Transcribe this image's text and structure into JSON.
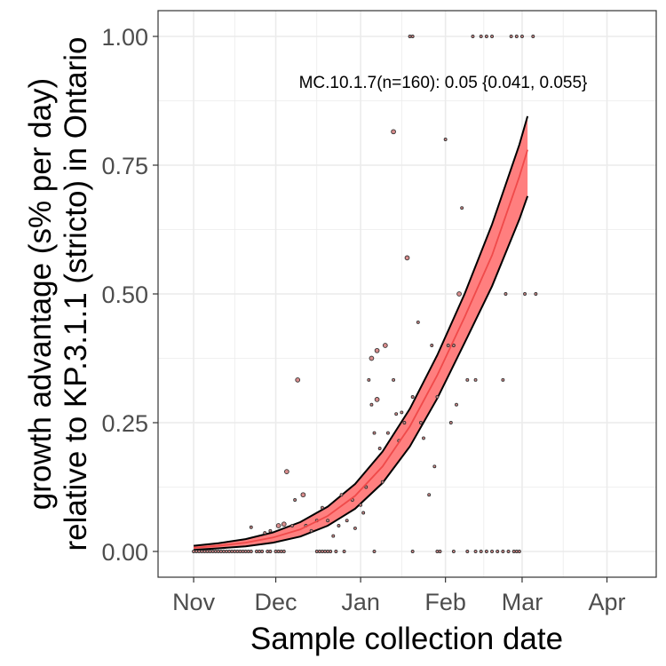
{
  "chart_data": {
    "type": "scatter",
    "title": "",
    "xlabel": "Sample collection date",
    "ylabel_line1": "growth advantage (s% per day)",
    "ylabel_line2": "relative to KP.3.1.1 (stricto) in Ontario",
    "annotation": "MC.10.1.7(n=160): 0.05 {0.041, 0.055}",
    "x_unit": "date",
    "xlim": [
      "2024-10-19",
      "2025-04-19"
    ],
    "ylim": [
      -0.05,
      1.05
    ],
    "x_ticks": [
      {
        "label": "Nov",
        "date": "2024-11-01"
      },
      {
        "label": "Dec",
        "date": "2024-12-01"
      },
      {
        "label": "Jan",
        "date": "2025-01-01"
      },
      {
        "label": "Feb",
        "date": "2025-02-01"
      },
      {
        "label": "Mar",
        "date": "2025-03-01"
      },
      {
        "label": "Apr",
        "date": "2025-04-01"
      }
    ],
    "y_ticks": [
      {
        "label": "0.00",
        "value": 0
      },
      {
        "label": "0.25",
        "value": 0.25
      },
      {
        "label": "0.50",
        "value": 0.5
      },
      {
        "label": "0.75",
        "value": 0.75
      },
      {
        "label": "1.00",
        "value": 1
      }
    ],
    "grid": true,
    "colors": {
      "ribbon": "#ff7f7f",
      "fit_line": "#f04a4a",
      "ribbon_border": "#000000",
      "point_fill": "#d98c8c",
      "point_stroke": "#333333",
      "grid": "#ebebeb",
      "panel_border": "#333333"
    },
    "fit": {
      "x": [
        "2024-11-01",
        "2024-11-10",
        "2024-11-20",
        "2024-11-30",
        "2024-12-10",
        "2024-12-20",
        "2024-12-30",
        "2025-01-09",
        "2025-01-19",
        "2025-01-29",
        "2025-02-08",
        "2025-02-18",
        "2025-02-28",
        "2025-03-03"
      ],
      "mid": [
        0.007,
        0.011,
        0.017,
        0.027,
        0.043,
        0.069,
        0.108,
        0.165,
        0.243,
        0.342,
        0.455,
        0.575,
        0.728,
        0.78
      ],
      "lower": [
        0.003,
        0.006,
        0.01,
        0.017,
        0.029,
        0.05,
        0.083,
        0.133,
        0.204,
        0.297,
        0.405,
        0.515,
        0.645,
        0.69
      ],
      "upper": [
        0.011,
        0.016,
        0.024,
        0.037,
        0.057,
        0.087,
        0.131,
        0.194,
        0.277,
        0.381,
        0.5,
        0.635,
        0.79,
        0.845
      ]
    },
    "points": [
      {
        "x": "2024-11-01",
        "y": 0,
        "size": 1
      },
      {
        "x": "2024-11-02",
        "y": 0,
        "size": 1
      },
      {
        "x": "2024-11-03",
        "y": 0,
        "size": 1
      },
      {
        "x": "2024-11-04",
        "y": 0,
        "size": 1
      },
      {
        "x": "2024-11-05",
        "y": 0,
        "size": 1
      },
      {
        "x": "2024-11-06",
        "y": 0,
        "size": 1
      },
      {
        "x": "2024-11-07",
        "y": 0,
        "size": 1
      },
      {
        "x": "2024-11-08",
        "y": 0,
        "size": 1
      },
      {
        "x": "2024-11-09",
        "y": 0,
        "size": 1
      },
      {
        "x": "2024-11-10",
        "y": 0,
        "size": 1
      },
      {
        "x": "2024-11-11",
        "y": 0,
        "size": 1
      },
      {
        "x": "2024-11-12",
        "y": 0,
        "size": 1
      },
      {
        "x": "2024-11-13",
        "y": 0,
        "size": 1
      },
      {
        "x": "2024-11-14",
        "y": 0,
        "size": 1
      },
      {
        "x": "2024-11-15",
        "y": 0,
        "size": 1
      },
      {
        "x": "2024-11-16",
        "y": 0,
        "size": 1
      },
      {
        "x": "2024-11-17",
        "y": 0,
        "size": 1
      },
      {
        "x": "2024-11-18",
        "y": 0,
        "size": 1
      },
      {
        "x": "2024-11-19",
        "y": 0,
        "size": 1
      },
      {
        "x": "2024-11-20",
        "y": 0,
        "size": 1
      },
      {
        "x": "2024-11-21",
        "y": 0,
        "size": 1
      },
      {
        "x": "2024-11-22",
        "y": 0,
        "size": 1
      },
      {
        "x": "2024-11-24",
        "y": 0,
        "size": 1
      },
      {
        "x": "2024-11-25",
        "y": 0,
        "size": 1
      },
      {
        "x": "2024-11-26",
        "y": 0,
        "size": 1
      },
      {
        "x": "2024-11-28",
        "y": 0,
        "size": 1
      },
      {
        "x": "2024-11-29",
        "y": 0,
        "size": 1
      },
      {
        "x": "2024-12-01",
        "y": 0,
        "size": 1
      },
      {
        "x": "2024-12-02",
        "y": 0,
        "size": 1
      },
      {
        "x": "2024-12-03",
        "y": 0,
        "size": 1
      },
      {
        "x": "2024-12-04",
        "y": 0,
        "size": 1
      },
      {
        "x": "2024-12-16",
        "y": 0,
        "size": 1
      },
      {
        "x": "2024-12-17",
        "y": 0,
        "size": 1
      },
      {
        "x": "2024-12-18",
        "y": 0,
        "size": 1
      },
      {
        "x": "2024-12-19",
        "y": 0,
        "size": 1
      },
      {
        "x": "2024-12-20",
        "y": 0,
        "size": 1
      },
      {
        "x": "2024-12-21",
        "y": 0,
        "size": 1
      },
      {
        "x": "2024-12-23",
        "y": 0,
        "size": 1
      },
      {
        "x": "2024-12-26",
        "y": 0,
        "size": 1
      },
      {
        "x": "2025-01-06",
        "y": 0,
        "size": 1
      },
      {
        "x": "2025-01-20",
        "y": 0,
        "size": 1
      },
      {
        "x": "2025-01-29",
        "y": 0,
        "size": 1
      },
      {
        "x": "2025-01-30",
        "y": 0,
        "size": 1
      },
      {
        "x": "2025-02-04",
        "y": 0,
        "size": 1
      },
      {
        "x": "2025-02-09",
        "y": 0,
        "size": 1
      },
      {
        "x": "2025-02-12",
        "y": 0,
        "size": 1
      },
      {
        "x": "2025-02-14",
        "y": 0,
        "size": 1
      },
      {
        "x": "2025-02-16",
        "y": 0,
        "size": 1
      },
      {
        "x": "2025-02-18",
        "y": 0,
        "size": 1
      },
      {
        "x": "2025-02-20",
        "y": 0,
        "size": 1
      },
      {
        "x": "2025-02-22",
        "y": 0,
        "size": 1
      },
      {
        "x": "2025-02-24",
        "y": 0,
        "size": 1
      },
      {
        "x": "2025-02-26",
        "y": 0,
        "size": 1
      },
      {
        "x": "2025-02-27",
        "y": 0,
        "size": 1
      },
      {
        "x": "2025-02-28",
        "y": 0,
        "size": 1
      },
      {
        "x": "2024-11-22",
        "y": 0.047,
        "size": 1
      },
      {
        "x": "2024-11-27",
        "y": 0.036,
        "size": 1
      },
      {
        "x": "2024-11-29",
        "y": 0.04,
        "size": 1
      },
      {
        "x": "2024-12-02",
        "y": 0.05,
        "size": 2
      },
      {
        "x": "2024-12-04",
        "y": 0.053,
        "size": 2
      },
      {
        "x": "2024-12-05",
        "y": 0.155,
        "size": 2
      },
      {
        "x": "2024-12-07",
        "y": 0.05,
        "size": 1
      },
      {
        "x": "2024-12-08",
        "y": 0.1,
        "size": 1
      },
      {
        "x": "2024-12-09",
        "y": 0.333,
        "size": 2
      },
      {
        "x": "2024-12-11",
        "y": 0.11,
        "size": 2
      },
      {
        "x": "2024-12-12",
        "y": 0.05,
        "size": 1
      },
      {
        "x": "2024-12-14",
        "y": 0.04,
        "size": 1
      },
      {
        "x": "2024-12-16",
        "y": 0.06,
        "size": 1
      },
      {
        "x": "2024-12-18",
        "y": 0.085,
        "size": 1
      },
      {
        "x": "2024-12-20",
        "y": 0.06,
        "size": 1
      },
      {
        "x": "2024-12-22",
        "y": 0.03,
        "size": 1
      },
      {
        "x": "2024-12-24",
        "y": 0.05,
        "size": 1
      },
      {
        "x": "2024-12-25",
        "y": 0.11,
        "size": 1
      },
      {
        "x": "2024-12-27",
        "y": 0.06,
        "size": 1
      },
      {
        "x": "2024-12-29",
        "y": 0.1,
        "size": 1
      },
      {
        "x": "2024-12-30",
        "y": 0.045,
        "size": 1
      },
      {
        "x": "2025-01-01",
        "y": 0.09,
        "size": 1
      },
      {
        "x": "2025-01-02",
        "y": 0.075,
        "size": 1
      },
      {
        "x": "2025-01-03",
        "y": 0.125,
        "size": 1
      },
      {
        "x": "2025-01-04",
        "y": 0.333,
        "size": 1
      },
      {
        "x": "2025-01-05",
        "y": 0.375,
        "size": 2
      },
      {
        "x": "2025-01-05",
        "y": 0.285,
        "size": 1
      },
      {
        "x": "2025-01-06",
        "y": 0.23,
        "size": 1
      },
      {
        "x": "2025-01-07",
        "y": 0.39,
        "size": 2
      },
      {
        "x": "2025-01-07",
        "y": 0.295,
        "size": 2
      },
      {
        "x": "2025-01-08",
        "y": 0.2,
        "size": 1
      },
      {
        "x": "2025-01-09",
        "y": 0.135,
        "size": 1
      },
      {
        "x": "2025-01-10",
        "y": 0.4,
        "size": 2
      },
      {
        "x": "2025-01-11",
        "y": 0.23,
        "size": 1
      },
      {
        "x": "2025-01-13",
        "y": 0.333,
        "size": 1
      },
      {
        "x": "2025-01-13",
        "y": 0.815,
        "size": 2
      },
      {
        "x": "2025-01-14",
        "y": 0.267,
        "size": 1
      },
      {
        "x": "2025-01-15",
        "y": 0.215,
        "size": 1
      },
      {
        "x": "2025-01-16",
        "y": 0.27,
        "size": 1
      },
      {
        "x": "2025-01-17",
        "y": 0.25,
        "size": 1
      },
      {
        "x": "2025-01-18",
        "y": 0.57,
        "size": 2
      },
      {
        "x": "2025-01-19",
        "y": 1.0,
        "size": 1
      },
      {
        "x": "2025-01-20",
        "y": 1.0,
        "size": 1
      },
      {
        "x": "2025-01-20",
        "y": 0.3,
        "size": 1
      },
      {
        "x": "2025-01-22",
        "y": 0.445,
        "size": 1
      },
      {
        "x": "2025-01-23",
        "y": 0.25,
        "size": 1
      },
      {
        "x": "2025-01-24",
        "y": 0.22,
        "size": 1
      },
      {
        "x": "2025-01-26",
        "y": 0.11,
        "size": 1
      },
      {
        "x": "2025-01-27",
        "y": 0.4,
        "size": 1
      },
      {
        "x": "2025-01-28",
        "y": 0.165,
        "size": 1
      },
      {
        "x": "2025-01-29",
        "y": 0.3,
        "size": 1
      },
      {
        "x": "2025-02-01",
        "y": 0.8,
        "size": 1
      },
      {
        "x": "2025-02-02",
        "y": 0.4,
        "size": 1
      },
      {
        "x": "2025-02-03",
        "y": 0.25,
        "size": 1
      },
      {
        "x": "2025-02-04",
        "y": 0.4,
        "size": 1
      },
      {
        "x": "2025-02-05",
        "y": 0.285,
        "size": 1
      },
      {
        "x": "2025-02-06",
        "y": 0.5,
        "size": 2
      },
      {
        "x": "2025-02-07",
        "y": 0.667,
        "size": 1
      },
      {
        "x": "2025-02-09",
        "y": 0.333,
        "size": 1
      },
      {
        "x": "2025-02-11",
        "y": 1.0,
        "size": 1
      },
      {
        "x": "2025-02-12",
        "y": 0.333,
        "size": 1
      },
      {
        "x": "2025-02-14",
        "y": 1.0,
        "size": 1
      },
      {
        "x": "2025-02-16",
        "y": 1.0,
        "size": 1
      },
      {
        "x": "2025-02-18",
        "y": 1.0,
        "size": 1
      },
      {
        "x": "2025-02-22",
        "y": 0.333,
        "size": 1
      },
      {
        "x": "2025-02-23",
        "y": 0.5,
        "size": 1
      },
      {
        "x": "2025-02-25",
        "y": 1.0,
        "size": 1
      },
      {
        "x": "2025-02-27",
        "y": 1.0,
        "size": 1
      },
      {
        "x": "2025-03-01",
        "y": 1.0,
        "size": 1
      },
      {
        "x": "2025-03-02",
        "y": 0.5,
        "size": 1
      },
      {
        "x": "2025-03-05",
        "y": 1.0,
        "size": 1
      },
      {
        "x": "2025-03-06",
        "y": 0.5,
        "size": 1
      }
    ]
  }
}
